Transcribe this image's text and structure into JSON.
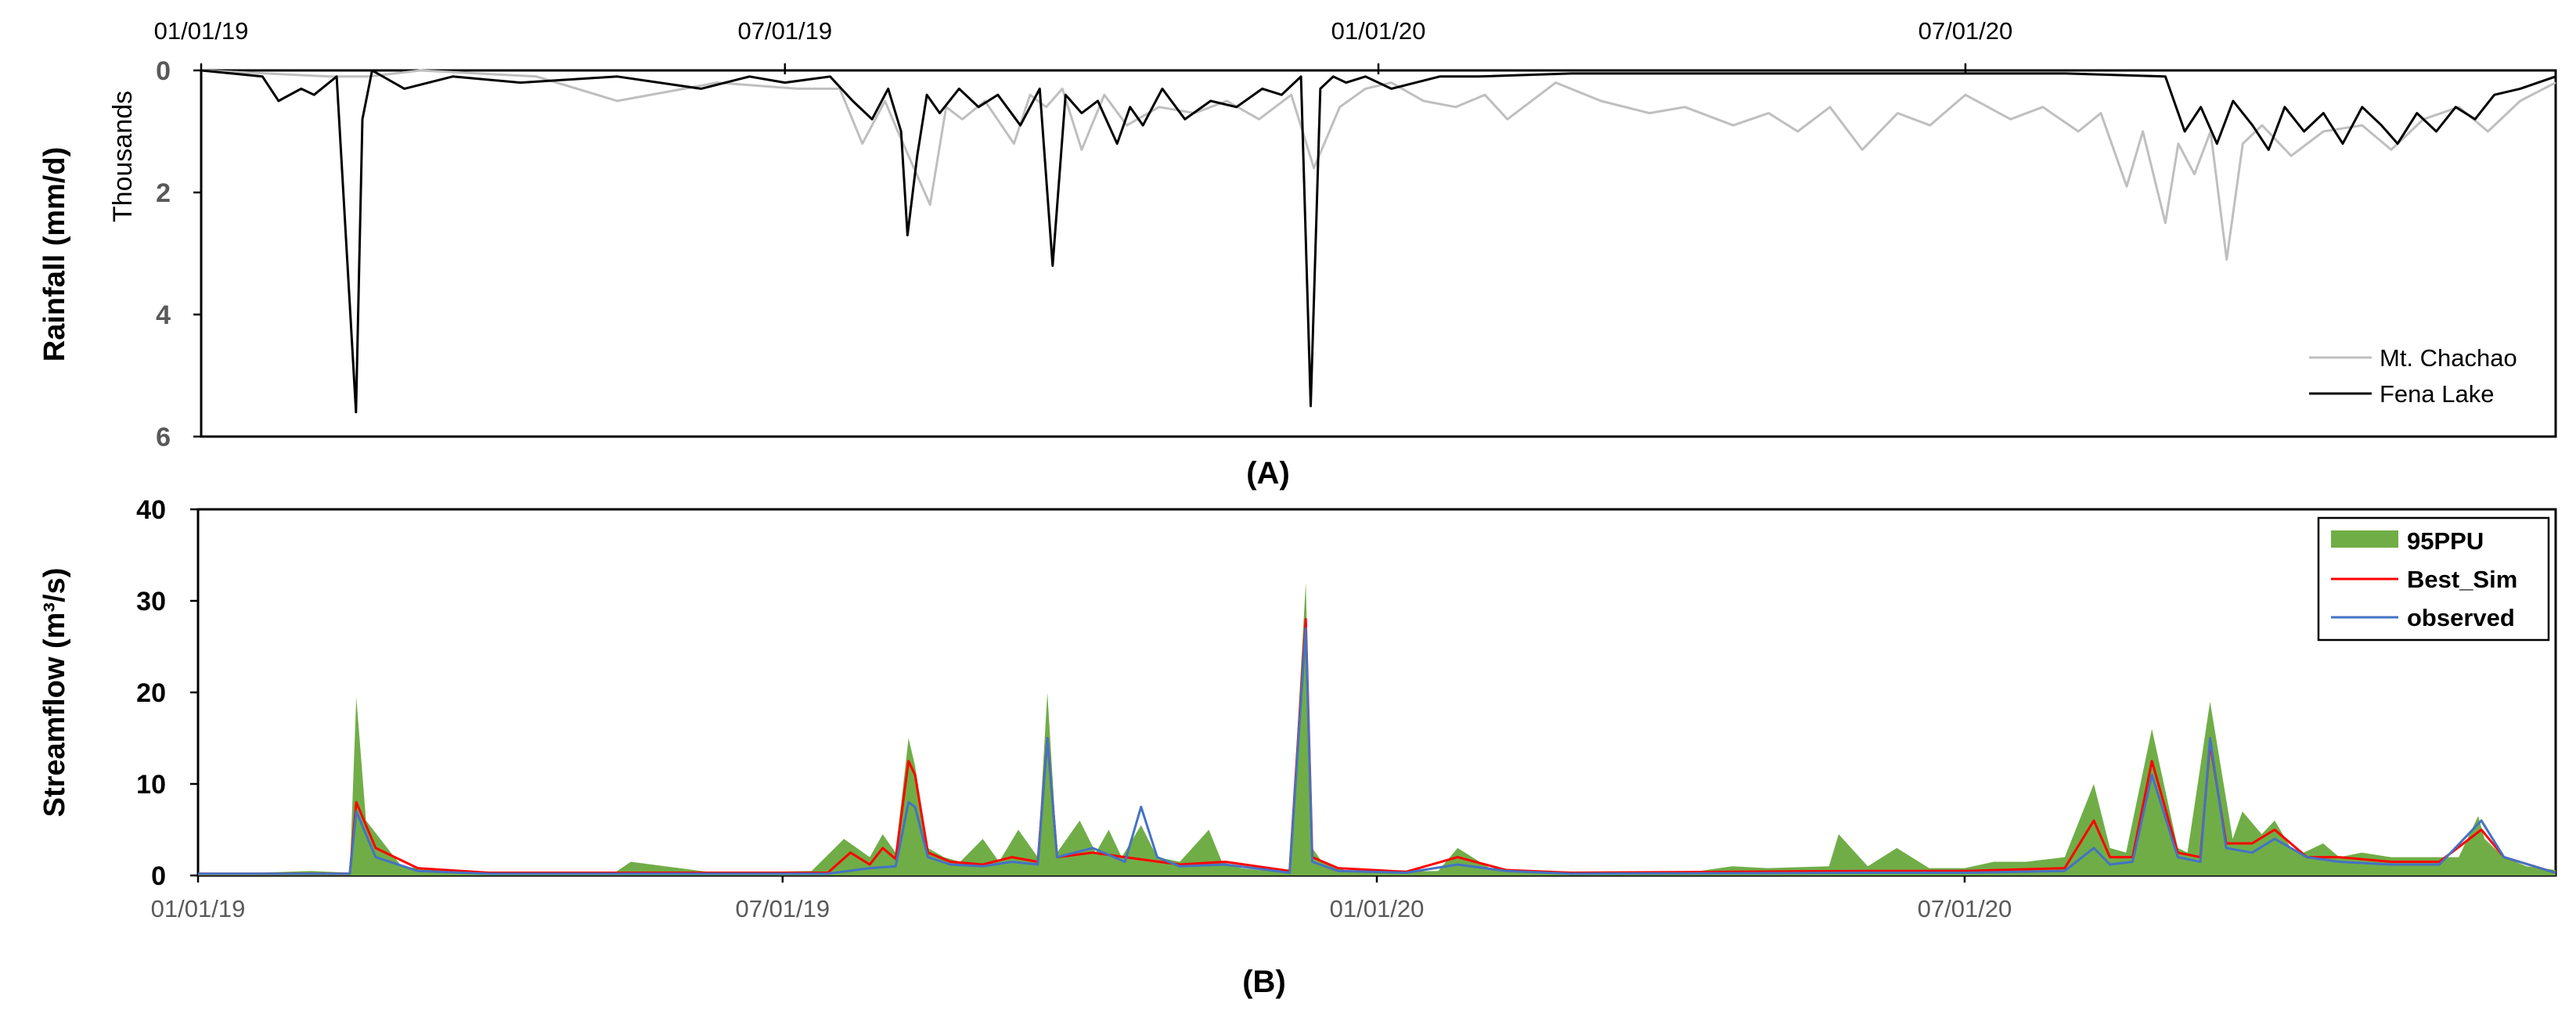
{
  "chart_data": [
    {
      "type": "line",
      "panel_label": "(A)",
      "ylabel": "Rainfall (mm/d)",
      "y_unit_label": "Thousands",
      "x_tick_labels": [
        "01/01/19",
        "07/01/19",
        "01/01/20",
        "07/01/20"
      ],
      "x_ticks": [
        "2019-01-01",
        "2019-07-01",
        "2020-01-01",
        "2020-07-01"
      ],
      "xlim": [
        "2019-01-01",
        "2020-12-31"
      ],
      "y_ticks": [
        0,
        2,
        4,
        6
      ],
      "ylim": [
        0,
        6
      ],
      "y_axis_inverted": true,
      "x_axis_position": "top",
      "legend_position": "bottom-right",
      "series": [
        {
          "name": "Mt. Chachao",
          "color": "#bfbfbf",
          "x": [
            "2019-01-01",
            "2019-02-10",
            "2019-02-22",
            "2019-03-10",
            "2019-04-15",
            "2019-05-10",
            "2019-06-10",
            "2019-07-05",
            "2019-07-18",
            "2019-07-25",
            "2019-08-01",
            "2019-08-05",
            "2019-08-10",
            "2019-08-15",
            "2019-08-20",
            "2019-08-25",
            "2019-09-01",
            "2019-09-10",
            "2019-09-15",
            "2019-09-20",
            "2019-09-25",
            "2019-10-01",
            "2019-10-08",
            "2019-10-15",
            "2019-10-25",
            "2019-11-05",
            "2019-11-15",
            "2019-11-25",
            "2019-12-05",
            "2019-12-12",
            "2019-12-20",
            "2019-12-28",
            "2020-01-05",
            "2020-01-15",
            "2020-01-25",
            "2020-02-03",
            "2020-02-10",
            "2020-02-25",
            "2020-03-10",
            "2020-03-25",
            "2020-04-05",
            "2020-04-20",
            "2020-05-01",
            "2020-05-10",
            "2020-05-20",
            "2020-05-30",
            "2020-06-10",
            "2020-06-20",
            "2020-07-01",
            "2020-07-15",
            "2020-07-25",
            "2020-08-05",
            "2020-08-12",
            "2020-08-20",
            "2020-08-25",
            "2020-09-01",
            "2020-09-05",
            "2020-09-10",
            "2020-09-15",
            "2020-09-20",
            "2020-09-25",
            "2020-10-01",
            "2020-10-10",
            "2020-10-20",
            "2020-11-01",
            "2020-11-10",
            "2020-11-20",
            "2020-12-01",
            "2020-12-10",
            "2020-12-20",
            "2020-12-31"
          ],
          "y": [
            0,
            0.1,
            0.1,
            0,
            0.1,
            0.5,
            0.2,
            0.3,
            0.3,
            1.2,
            0.5,
            1.0,
            1.6,
            2.2,
            0.6,
            0.8,
            0.5,
            1.2,
            0.4,
            0.6,
            0.3,
            1.3,
            0.4,
            0.9,
            0.6,
            0.7,
            0.5,
            0.8,
            0.4,
            1.6,
            0.6,
            0.3,
            0.2,
            0.5,
            0.6,
            0.4,
            0.8,
            0.2,
            0.5,
            0.7,
            0.6,
            0.9,
            0.7,
            1.0,
            0.6,
            1.3,
            0.7,
            0.9,
            0.4,
            0.8,
            0.6,
            1.0,
            0.7,
            1.9,
            1.0,
            2.5,
            1.2,
            1.7,
            1.0,
            3.1,
            1.2,
            0.9,
            1.4,
            1.0,
            0.9,
            1.3,
            0.8,
            0.6,
            1.0,
            0.5,
            0.2
          ]
        },
        {
          "name": "Fena Lake",
          "color": "#000000",
          "x": [
            "2019-01-01",
            "2019-01-20",
            "2019-01-25",
            "2019-02-01",
            "2019-02-05",
            "2019-02-12",
            "2019-02-18",
            "2019-02-20",
            "2019-02-23",
            "2019-03-05",
            "2019-03-20",
            "2019-04-10",
            "2019-05-10",
            "2019-06-05",
            "2019-06-20",
            "2019-07-01",
            "2019-07-15",
            "2019-07-22",
            "2019-07-28",
            "2019-08-02",
            "2019-08-06",
            "2019-08-08",
            "2019-08-11",
            "2019-08-14",
            "2019-08-18",
            "2019-08-24",
            "2019-08-30",
            "2019-09-05",
            "2019-09-12",
            "2019-09-18",
            "2019-09-22",
            "2019-09-26",
            "2019-10-01",
            "2019-10-06",
            "2019-10-12",
            "2019-10-16",
            "2019-10-20",
            "2019-10-26",
            "2019-11-02",
            "2019-11-10",
            "2019-11-18",
            "2019-11-26",
            "2019-12-02",
            "2019-12-08",
            "2019-12-11",
            "2019-12-14",
            "2019-12-18",
            "2019-12-22",
            "2019-12-28",
            "2020-01-05",
            "2020-01-20",
            "2020-02-01",
            "2020-03-01",
            "2020-04-01",
            "2020-05-01",
            "2020-06-01",
            "2020-07-01",
            "2020-08-01",
            "2020-09-01",
            "2020-09-07",
            "2020-09-12",
            "2020-09-17",
            "2020-09-22",
            "2020-09-28",
            "2020-10-03",
            "2020-10-08",
            "2020-10-14",
            "2020-10-20",
            "2020-10-26",
            "2020-11-01",
            "2020-11-07",
            "2020-11-12",
            "2020-11-18",
            "2020-11-24",
            "2020-11-30",
            "2020-12-06",
            "2020-12-12",
            "2020-12-20",
            "2020-12-31"
          ],
          "y": [
            0,
            0.1,
            0.5,
            0.3,
            0.4,
            0.1,
            5.6,
            0.8,
            0,
            0.3,
            0.1,
            0.2,
            0.1,
            0.3,
            0.1,
            0.2,
            0.1,
            0.5,
            0.8,
            0.3,
            1.0,
            2.7,
            1.4,
            0.4,
            0.7,
            0.3,
            0.6,
            0.4,
            0.9,
            0.3,
            3.2,
            0.4,
            0.7,
            0.5,
            1.2,
            0.6,
            0.9,
            0.3,
            0.8,
            0.5,
            0.6,
            0.3,
            0.4,
            0.1,
            5.5,
            0.3,
            0.1,
            0.2,
            0.1,
            0.3,
            0.1,
            0.1,
            0.05,
            0.05,
            0.05,
            0.05,
            0.05,
            0.05,
            0.1,
            1.0,
            0.6,
            1.2,
            0.5,
            0.9,
            1.3,
            0.6,
            1.0,
            0.7,
            1.2,
            0.6,
            0.9,
            1.2,
            0.7,
            1.0,
            0.6,
            0.8,
            0.4,
            0.3,
            0.1
          ]
        }
      ]
    },
    {
      "type": "area",
      "panel_label": "(B)",
      "ylabel": "Streamflow (m³/s)",
      "x_tick_labels": [
        "01/01/19",
        "07/01/19",
        "01/01/20",
        "07/01/20"
      ],
      "x_ticks": [
        "2019-01-01",
        "2019-07-01",
        "2020-01-01",
        "2020-07-01"
      ],
      "xlim": [
        "2019-01-01",
        "2020-12-31"
      ],
      "y_ticks": [
        0,
        10,
        20,
        30,
        40
      ],
      "ylim": [
        0,
        40
      ],
      "legend_position": "top-right",
      "series": [
        {
          "name": "95PPU",
          "color": "#70ad47",
          "x": [
            "2019-01-01",
            "2019-01-20",
            "2019-02-05",
            "2019-02-17",
            "2019-02-19",
            "2019-02-22",
            "2019-03-05",
            "2019-03-20",
            "2019-04-15",
            "2019-05-10",
            "2019-05-15",
            "2019-06-10",
            "2019-07-10",
            "2019-07-20",
            "2019-07-28",
            "2019-08-01",
            "2019-08-05",
            "2019-08-09",
            "2019-08-11",
            "2019-08-15",
            "2019-08-20",
            "2019-08-25",
            "2019-09-01",
            "2019-09-06",
            "2019-09-12",
            "2019-09-18",
            "2019-09-21",
            "2019-09-24",
            "2019-10-01",
            "2019-10-06",
            "2019-10-10",
            "2019-10-14",
            "2019-10-20",
            "2019-10-25",
            "2019-11-01",
            "2019-11-10",
            "2019-11-14",
            "2019-11-20",
            "2019-11-28",
            "2019-12-05",
            "2019-12-10",
            "2019-12-12",
            "2019-12-15",
            "2019-12-22",
            "2020-01-05",
            "2020-01-20",
            "2020-01-26",
            "2020-02-05",
            "2020-02-20",
            "2020-03-20",
            "2020-04-10",
            "2020-04-20",
            "2020-05-01",
            "2020-05-20",
            "2020-05-23",
            "2020-06-01",
            "2020-06-10",
            "2020-06-20",
            "2020-07-01",
            "2020-07-10",
            "2020-07-20",
            "2020-08-01",
            "2020-08-10",
            "2020-08-15",
            "2020-08-20",
            "2020-08-28",
            "2020-09-05",
            "2020-09-08",
            "2020-09-15",
            "2020-09-22",
            "2020-09-25",
            "2020-10-01",
            "2020-10-05",
            "2020-10-10",
            "2020-10-14",
            "2020-10-20",
            "2020-10-25",
            "2020-11-01",
            "2020-11-10",
            "2020-11-20",
            "2020-12-01",
            "2020-12-07",
            "2020-12-09",
            "2020-12-15",
            "2020-12-22",
            "2020-12-31"
          ],
          "y": [
            0.3,
            0.3,
            0.5,
            0.3,
            19.5,
            6.0,
            1.0,
            0.4,
            0.3,
            0.3,
            1.5,
            0.3,
            0.5,
            4.0,
            2.0,
            4.5,
            2.5,
            15.0,
            12.0,
            3.0,
            2.0,
            1.5,
            4.0,
            1.5,
            5.0,
            2.0,
            20.0,
            2.5,
            6.0,
            2.5,
            5.0,
            2.0,
            5.5,
            2.0,
            1.5,
            5.0,
            1.5,
            0.8,
            0.5,
            0.5,
            32.0,
            3.0,
            1.5,
            0.6,
            0.4,
            0.5,
            3.0,
            0.8,
            0.3,
            0.3,
            0.5,
            1.0,
            0.8,
            1.0,
            4.5,
            1.0,
            3.0,
            0.8,
            0.8,
            1.5,
            1.5,
            2.0,
            10.0,
            3.0,
            2.5,
            16.0,
            3.0,
            2.5,
            19.0,
            4.0,
            7.0,
            4.5,
            6.0,
            3.0,
            2.5,
            3.5,
            2.0,
            2.5,
            2.0,
            2.0,
            2.0,
            6.5,
            4.0,
            2.0,
            1.0,
            0.6
          ]
        },
        {
          "name": "Best_Sim",
          "color": "#ff0000",
          "x": [
            "2019-01-01",
            "2019-02-17",
            "2019-02-19",
            "2019-02-25",
            "2019-03-10",
            "2019-04-01",
            "2019-07-15",
            "2019-07-22",
            "2019-07-28",
            "2019-08-01",
            "2019-08-05",
            "2019-08-09",
            "2019-08-11",
            "2019-08-15",
            "2019-08-22",
            "2019-09-01",
            "2019-09-10",
            "2019-09-18",
            "2019-09-21",
            "2019-09-24",
            "2019-10-05",
            "2019-10-15",
            "2019-11-01",
            "2019-11-15",
            "2019-12-05",
            "2019-12-10",
            "2019-12-12",
            "2019-12-20",
            "2020-01-10",
            "2020-01-26",
            "2020-02-10",
            "2020-03-01",
            "2020-06-01",
            "2020-07-01",
            "2020-08-01",
            "2020-08-10",
            "2020-08-15",
            "2020-08-22",
            "2020-08-28",
            "2020-09-05",
            "2020-09-12",
            "2020-09-15",
            "2020-09-20",
            "2020-09-28",
            "2020-10-05",
            "2020-10-15",
            "2020-10-25",
            "2020-11-10",
            "2020-11-25",
            "2020-12-08",
            "2020-12-15",
            "2020-12-31"
          ],
          "y": [
            0.2,
            0.2,
            8.0,
            3.0,
            0.8,
            0.3,
            0.3,
            2.5,
            1.2,
            3.0,
            1.8,
            12.5,
            11.0,
            2.5,
            1.5,
            1.2,
            2.0,
            1.5,
            15.0,
            2.0,
            2.5,
            2.0,
            1.2,
            1.5,
            0.5,
            28.0,
            2.0,
            0.8,
            0.4,
            2.0,
            0.6,
            0.3,
            0.5,
            0.5,
            0.8,
            6.0,
            2.0,
            2.0,
            12.5,
            2.5,
            2.0,
            14.5,
            3.5,
            3.5,
            5.0,
            2.0,
            2.0,
            1.5,
            1.5,
            5.0,
            2.0,
            0.3
          ]
        },
        {
          "name": "observed",
          "color": "#4472c4",
          "x": [
            "2019-01-01",
            "2019-02-17",
            "2019-02-19",
            "2019-02-25",
            "2019-03-10",
            "2019-04-01",
            "2019-07-15",
            "2019-07-28",
            "2019-08-05",
            "2019-08-09",
            "2019-08-11",
            "2019-08-15",
            "2019-08-22",
            "2019-09-01",
            "2019-09-10",
            "2019-09-18",
            "2019-09-21",
            "2019-09-24",
            "2019-10-05",
            "2019-10-15",
            "2019-10-20",
            "2019-10-25",
            "2019-11-01",
            "2019-11-15",
            "2019-12-05",
            "2019-12-10",
            "2019-12-12",
            "2019-12-20",
            "2020-01-10",
            "2020-01-26",
            "2020-02-10",
            "2020-03-01",
            "2020-06-01",
            "2020-07-01",
            "2020-08-01",
            "2020-08-10",
            "2020-08-15",
            "2020-08-22",
            "2020-08-28",
            "2020-09-05",
            "2020-09-12",
            "2020-09-15",
            "2020-09-20",
            "2020-09-28",
            "2020-10-05",
            "2020-10-15",
            "2020-10-25",
            "2020-11-10",
            "2020-11-25",
            "2020-12-08",
            "2020-12-15",
            "2020-12-31"
          ],
          "y": [
            0.2,
            0.2,
            7.0,
            2.0,
            0.5,
            0.2,
            0.2,
            0.8,
            1.0,
            8.0,
            7.5,
            2.0,
            1.2,
            1.0,
            1.5,
            1.2,
            15.0,
            2.0,
            3.0,
            1.5,
            7.5,
            2.0,
            1.0,
            1.2,
            0.3,
            27.0,
            1.5,
            0.5,
            0.3,
            1.2,
            0.5,
            0.2,
            0.3,
            0.3,
            0.5,
            3.0,
            1.2,
            1.5,
            11.0,
            2.0,
            1.5,
            15.0,
            3.0,
            2.5,
            4.0,
            2.0,
            1.5,
            1.2,
            1.2,
            6.0,
            2.0,
            0.3
          ]
        }
      ]
    }
  ]
}
